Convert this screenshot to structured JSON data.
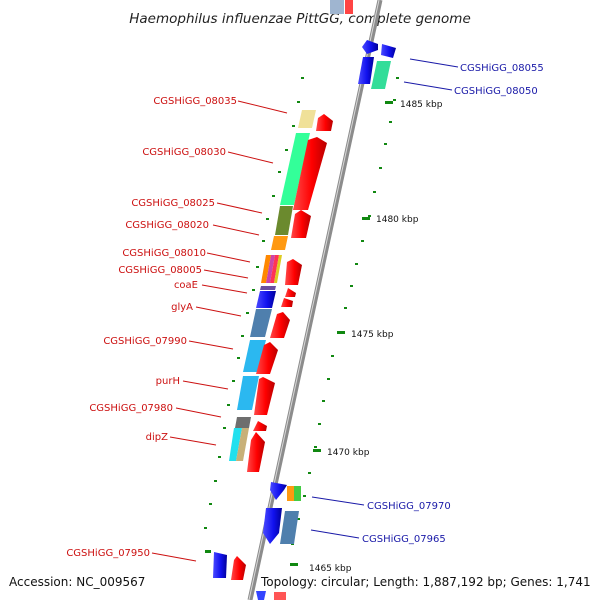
{
  "title": "Haemophilus influenzae PittGG, complete genome",
  "accession": "Accession: NC_009567",
  "topology": "Topology: circular; Length: 1,887,192 bp; Genes: 1,741",
  "colors": {
    "red_label": "#cc1111",
    "blue_label": "#1a1aa8",
    "backbone": "#8c8c8c",
    "tick": "#118811"
  },
  "gene_labels_left": [
    "CGSHiGG_08035",
    "CGSHiGG_08030",
    "CGSHiGG_08025",
    "CGSHiGG_08020",
    "CGSHiGG_08010",
    "CGSHiGG_08005",
    "coaE",
    "glyA",
    "CGSHiGG_07990",
    "purH",
    "CGSHiGG_07980",
    "dipZ",
    "CGSHiGG_07950"
  ],
  "gene_labels_right": [
    "CGSHiGG_08055",
    "CGSHiGG_08050",
    "CGSHiGG_07970",
    "CGSHiGG_07965"
  ],
  "scale_labels": [
    "1485 kbp",
    "1480 kbp",
    "1475 kbp",
    "1470 kbp",
    "1465 kbp"
  ]
}
